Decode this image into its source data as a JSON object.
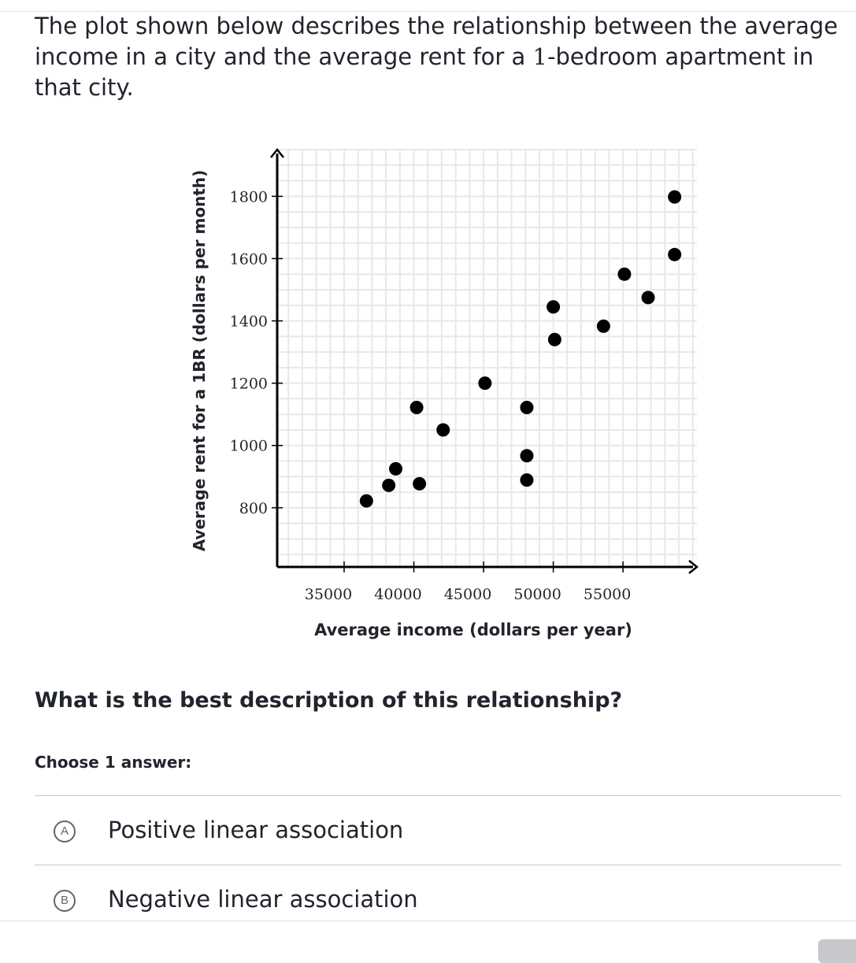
{
  "question": {
    "intro_before": "The plot shown below describes the relationship between the average income in a city and the average rent for a ",
    "intro_number": "1",
    "intro_after": "-bedroom apartment in that city.",
    "prompt": "What is the best description of this relationship?",
    "choose_label": "Choose 1 answer:"
  },
  "answers": [
    {
      "letter": "A",
      "text": "Positive linear association"
    },
    {
      "letter": "B",
      "text": "Negative linear association"
    }
  ],
  "chart_data": {
    "type": "scatter",
    "xlabel": "Average income (dollars per year)",
    "ylabel": "Average rent for a 1BR (dollars per month)",
    "xlim": [
      30200,
      60300
    ],
    "ylim": [
      610,
      1950
    ],
    "x_ticks": [
      35000,
      40000,
      45000,
      50000,
      55000
    ],
    "y_ticks": [
      800,
      1000,
      1200,
      1400,
      1600,
      1800
    ],
    "grid": true,
    "point_color": "#000000",
    "points": [
      {
        "x": 36600,
        "y": 822
      },
      {
        "x": 38200,
        "y": 872
      },
      {
        "x": 38700,
        "y": 925
      },
      {
        "x": 40200,
        "y": 1122
      },
      {
        "x": 40400,
        "y": 877
      },
      {
        "x": 42100,
        "y": 1050
      },
      {
        "x": 45100,
        "y": 1200
      },
      {
        "x": 48100,
        "y": 1122
      },
      {
        "x": 48100,
        "y": 967
      },
      {
        "x": 48100,
        "y": 889
      },
      {
        "x": 50000,
        "y": 1445
      },
      {
        "x": 50100,
        "y": 1340
      },
      {
        "x": 53600,
        "y": 1383
      },
      {
        "x": 55100,
        "y": 1550
      },
      {
        "x": 56800,
        "y": 1475
      },
      {
        "x": 58700,
        "y": 1798
      },
      {
        "x": 58700,
        "y": 1613
      }
    ]
  }
}
